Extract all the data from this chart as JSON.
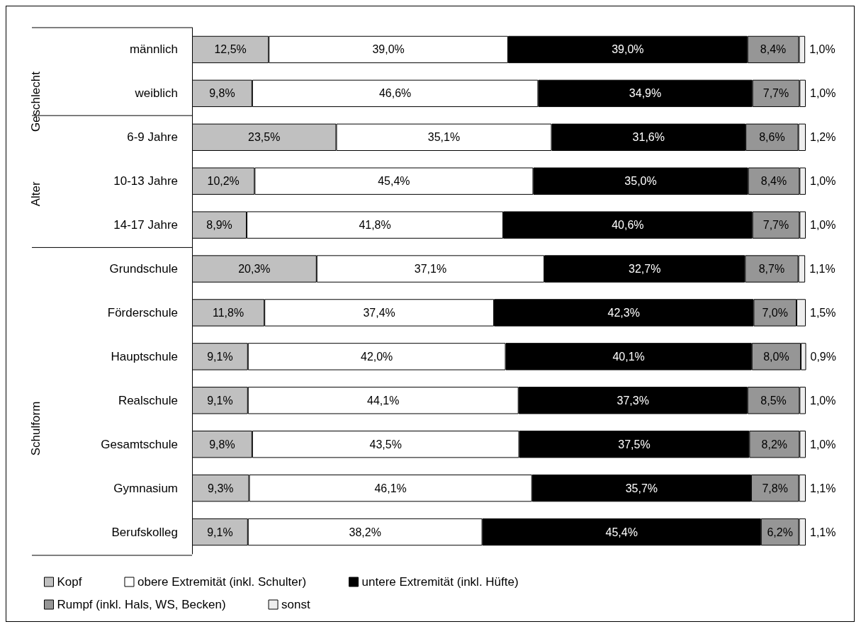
{
  "chart_data": {
    "type": "bar",
    "orientation": "horizontal",
    "stacked": true,
    "categories": [
      "männlich",
      "weiblich",
      "6-9 Jahre",
      "10-13 Jahre",
      "14-17 Jahre",
      "Grundschule",
      "Förderschule",
      "Hauptschule",
      "Realschule",
      "Gesamtschule",
      "Gymnasium",
      "Berufskolleg"
    ],
    "series": [
      {
        "name": "Kopf",
        "color": "#c0c0c0",
        "values": [
          12.5,
          9.8,
          23.5,
          10.2,
          8.9,
          20.3,
          11.8,
          9.1,
          9.1,
          9.8,
          9.3,
          9.1
        ],
        "value_labels": [
          "12,5%",
          "9,8%",
          "23,5%",
          "10,2%",
          "8,9%",
          "20,3%",
          "11,8%",
          "9,1%",
          "9,1%",
          "9,8%",
          "9,3%",
          "9,1%"
        ]
      },
      {
        "name": "obere Extremität (inkl. Schulter)",
        "color": "#ffffff",
        "values": [
          39.0,
          46.6,
          35.1,
          45.4,
          41.8,
          37.1,
          37.4,
          42.0,
          44.1,
          43.5,
          46.1,
          38.2
        ],
        "value_labels": [
          "39,0%",
          "46,6%",
          "35,1%",
          "45,4%",
          "41,8%",
          "37,1%",
          "37,4%",
          "42,0%",
          "44,1%",
          "43,5%",
          "46,1%",
          "38,2%"
        ]
      },
      {
        "name": "untere Extremität (inkl. Hüfte)",
        "color": "#000000",
        "values": [
          39.0,
          34.9,
          31.6,
          35.0,
          40.6,
          32.7,
          42.3,
          40.1,
          37.3,
          37.5,
          35.7,
          45.4
        ],
        "value_labels": [
          "39,0%",
          "34,9%",
          "31,6%",
          "35,0%",
          "40,6%",
          "32,7%",
          "42,3%",
          "40,1%",
          "37,3%",
          "37,5%",
          "35,7%",
          "45,4%"
        ]
      },
      {
        "name": "Rumpf (inkl. Hals, WS, Becken)",
        "color": "#969696",
        "values": [
          8.4,
          7.7,
          8.6,
          8.4,
          7.7,
          8.7,
          7.0,
          8.0,
          8.5,
          8.2,
          7.8,
          6.2
        ],
        "value_labels": [
          "8,4%",
          "7,7%",
          "8,6%",
          "8,4%",
          "7,7%",
          "8,7%",
          "7,0%",
          "8,0%",
          "8,5%",
          "8,2%",
          "7,8%",
          "6,2%"
        ]
      },
      {
        "name": "sonst",
        "color": "#eeeeee",
        "values": [
          1.0,
          1.0,
          1.2,
          1.0,
          1.0,
          1.1,
          1.5,
          0.9,
          1.0,
          1.0,
          1.1,
          1.1
        ],
        "value_labels": [
          "1,0%",
          "1,0%",
          "1,2%",
          "1,0%",
          "1,0%",
          "1,1%",
          "1,5%",
          "0,9%",
          "1,0%",
          "1,0%",
          "1,1%",
          "1,1%"
        ]
      }
    ],
    "xlim": [
      0,
      100
    ],
    "tick_labels": "y",
    "legend": "bottom",
    "grid": false,
    "annotations": [
      "Geschlecht",
      "Alter",
      "Schulform"
    ]
  }
}
